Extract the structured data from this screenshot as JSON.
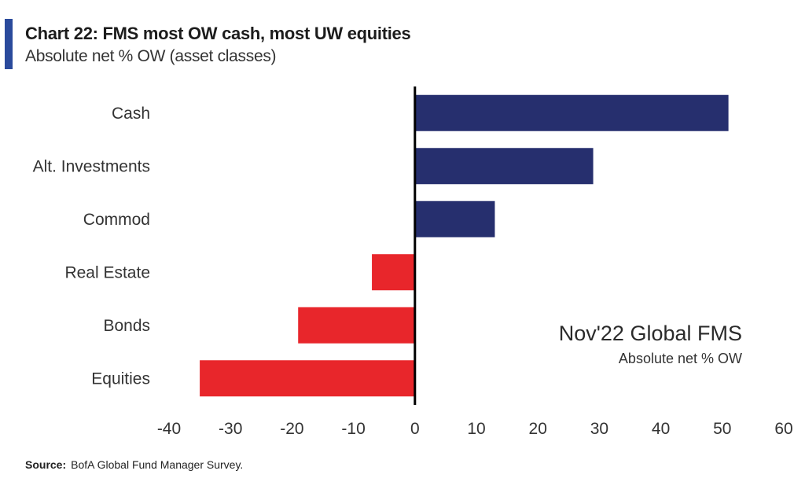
{
  "header": {
    "title": "Chart 22: FMS most OW cash, most UW equities",
    "subtitle": "Absolute net % OW (asset classes)"
  },
  "colors": {
    "accent": "#2a4a9c",
    "positive": "#262f6e",
    "negative": "#e8262b",
    "axis": "#000000"
  },
  "annotation": {
    "main": "Nov'22 Global FMS",
    "sub": "Absolute net % OW"
  },
  "source": {
    "label": "Source:",
    "text": "BofA Global Fund Manager Survey."
  },
  "chart_data": {
    "type": "bar",
    "orientation": "horizontal",
    "categories": [
      "Cash",
      "Alt. Investments",
      "Commod",
      "Real Estate",
      "Bonds",
      "Equities"
    ],
    "values": [
      51,
      29,
      13,
      -7,
      -19,
      -35
    ],
    "xlim": [
      -40,
      60
    ],
    "xticks": [
      -40,
      -30,
      -20,
      -10,
      0,
      10,
      20,
      30,
      40,
      50,
      60
    ],
    "title": "Chart 22: FMS most OW cash, most UW equities",
    "subtitle": "Absolute net % OW (asset classes)",
    "grid": false,
    "legend": "none"
  }
}
